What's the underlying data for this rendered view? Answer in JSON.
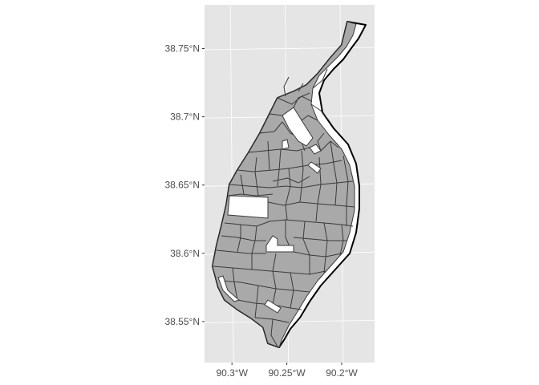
{
  "colors": {
    "panel_background": "#e5e5e5",
    "grid_major": "#ffffff",
    "tract_fill": "#a9a9a9",
    "tract_border": "#3a3a3a",
    "city_outline": "#000000",
    "hole_fill": "#ffffff",
    "axis_text": "#4d4d4d"
  },
  "chart_data": {
    "type": "map",
    "title": "",
    "xlabel": "",
    "ylabel": "",
    "grid": true,
    "legend": "none",
    "x_ticks": [
      {
        "value": -90.3,
        "label": "90.3°W"
      },
      {
        "value": -90.25,
        "label": "90.25°W"
      },
      {
        "value": -90.2,
        "label": "90.2°W"
      }
    ],
    "y_ticks": [
      {
        "value": 38.55,
        "label": "38.55°N"
      },
      {
        "value": 38.6,
        "label": "38.6°N"
      },
      {
        "value": 38.65,
        "label": "38.65°N"
      },
      {
        "value": 38.7,
        "label": "38.7°N"
      },
      {
        "value": 38.75,
        "label": "38.75°N"
      }
    ],
    "xlim": [
      -90.325,
      -90.17
    ],
    "ylim": [
      38.52,
      38.782
    ]
  }
}
